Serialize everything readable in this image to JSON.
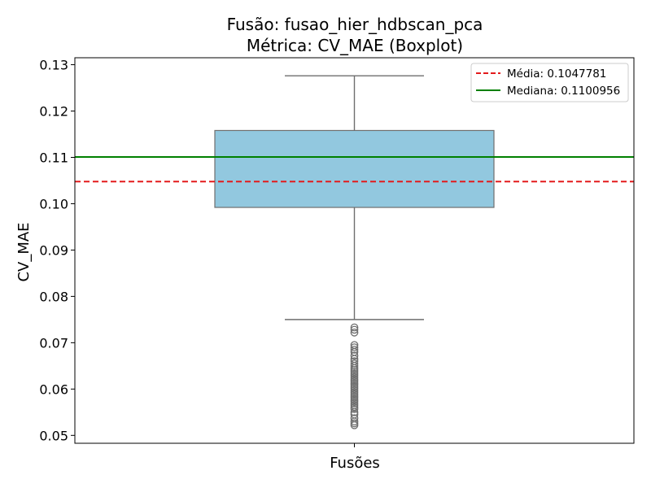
{
  "chart_data": {
    "type": "boxplot",
    "title_line1": "Fusão: fusao_hier_hdbscan_pca",
    "title_line2": "Métrica: CV_MAE (Boxplot)",
    "xlabel": "Fusões",
    "ylabel": "CV_MAE",
    "ylim": [
      0.0483,
      0.1315
    ],
    "yticks": [
      0.05,
      0.06,
      0.07,
      0.08,
      0.09,
      0.1,
      0.11,
      0.12,
      0.13
    ],
    "ytick_labels": [
      "0.05",
      "0.06",
      "0.07",
      "0.08",
      "0.09",
      "0.10",
      "0.11",
      "0.12",
      "0.13"
    ],
    "box": {
      "whisker_low": 0.075,
      "q1": 0.0992,
      "median": 0.1100956,
      "q3": 0.1158,
      "whisker_high": 0.1276,
      "fill_color": "#92c8df",
      "edge_color": "#6e6e6e"
    },
    "outliers": [
      0.0733,
      0.0728,
      0.0722,
      0.0695,
      0.069,
      0.0685,
      0.068,
      0.0672,
      0.0665,
      0.066,
      0.0655,
      0.065,
      0.0645,
      0.0641,
      0.0637,
      0.0633,
      0.0629,
      0.0625,
      0.0621,
      0.0617,
      0.0613,
      0.0609,
      0.0605,
      0.0601,
      0.0597,
      0.0593,
      0.0589,
      0.0585,
      0.0581,
      0.0577,
      0.0573,
      0.0569,
      0.0565,
      0.0561,
      0.0557,
      0.055,
      0.0545,
      0.0537,
      0.053,
      0.0526,
      0.0522
    ],
    "reference_lines": [
      {
        "name": "Média",
        "label": "Média: 0.1047781",
        "value": 0.1047781,
        "color": "#e31a1c",
        "style": "dashed"
      },
      {
        "name": "Mediana",
        "label": "Mediana: 0.1100956",
        "value": 0.1100956,
        "color": "#008000",
        "style": "solid"
      }
    ],
    "legend_position": "top-right",
    "grid": false
  }
}
